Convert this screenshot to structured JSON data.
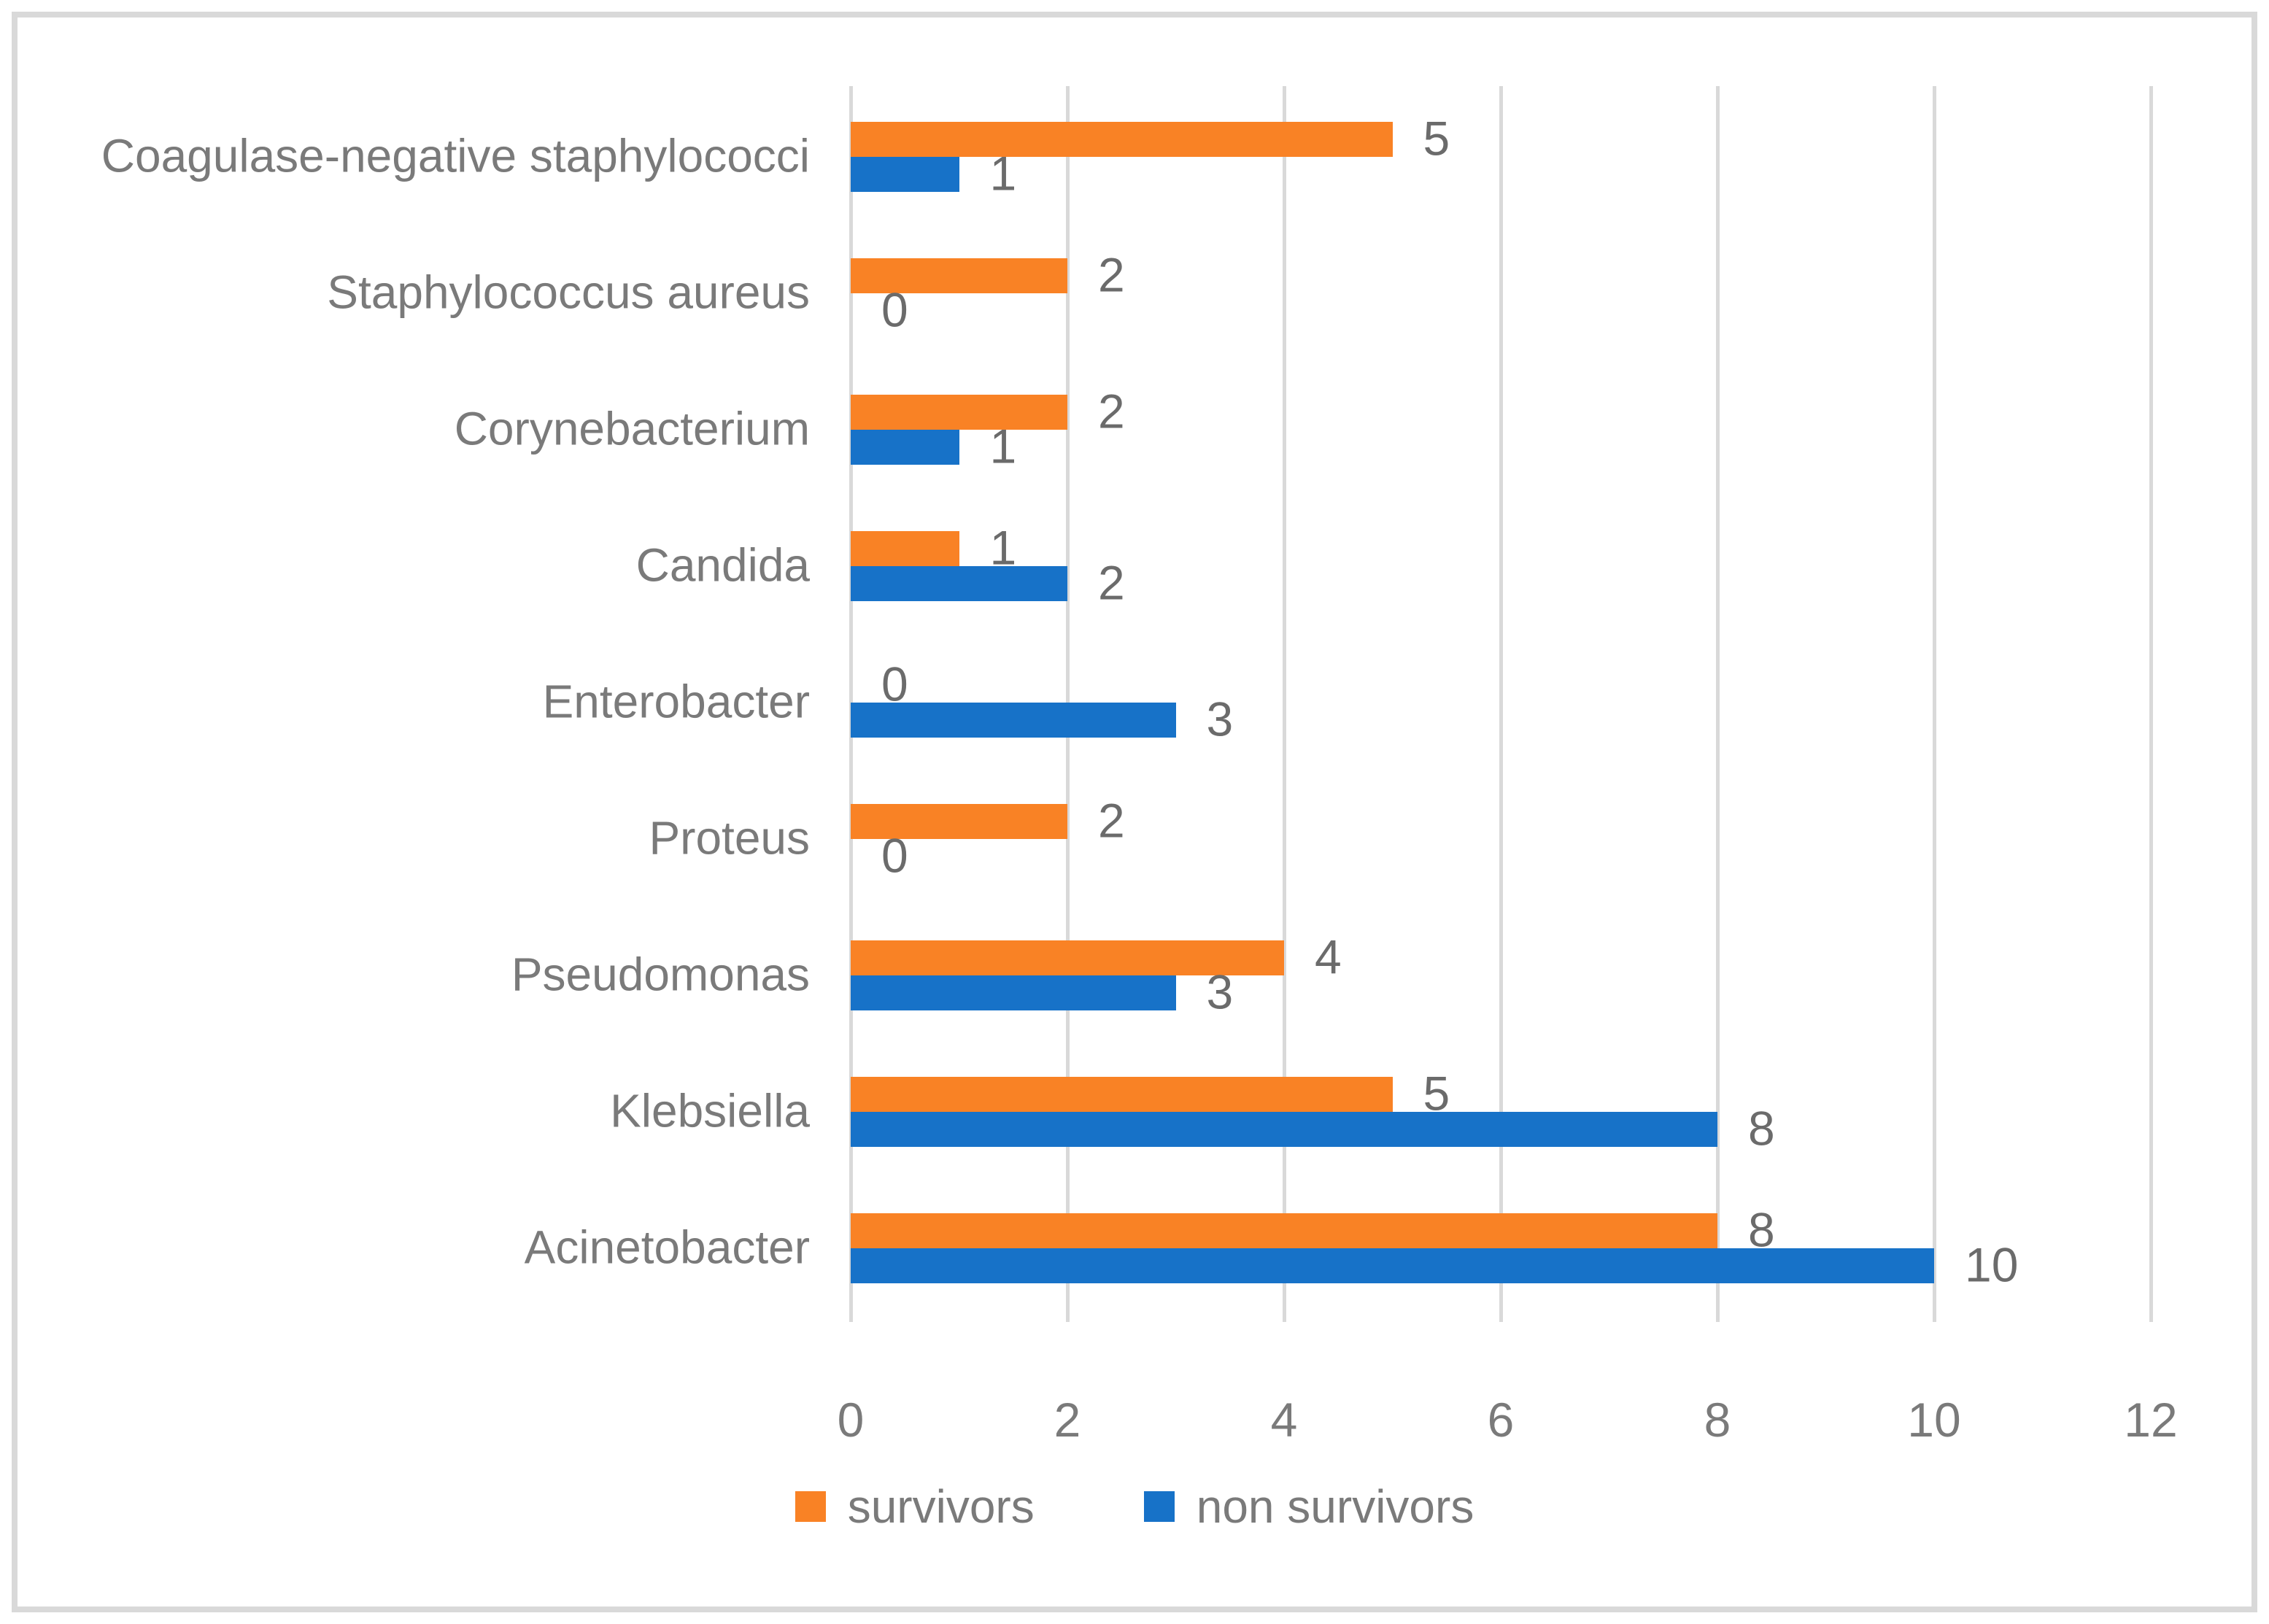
{
  "figure": {
    "background": "#FFFFFF",
    "border_color": "#D9D9D9"
  },
  "chart_data": {
    "type": "bar",
    "orientation": "horizontal",
    "title": "",
    "xlabel": "",
    "ylabel": "",
    "categories": [
      "Coagulase-negative staphylococci",
      "Staphylococcus aureus",
      "Corynebacterium",
      "Candida",
      "Enterobacter",
      "Proteus",
      "Pseudomonas",
      "Klebsiella",
      "Acinetobacter"
    ],
    "series": [
      {
        "name": "survivors",
        "color": "#F98225",
        "values": [
          5,
          2,
          2,
          1,
          0,
          2,
          4,
          5,
          8
        ]
      },
      {
        "name": "non survivors",
        "color": "#1772C8",
        "values": [
          1,
          0,
          1,
          2,
          3,
          0,
          3,
          8,
          10
        ]
      }
    ],
    "x_ticks": [
      0,
      2,
      4,
      6,
      8,
      10,
      12
    ],
    "xlim": [
      0,
      12
    ],
    "grid": true,
    "gridline_color": "#D9D9D9",
    "data_labels": true,
    "value_label_color": "#6B6B6B",
    "axis_text_color": "#7A7A7A",
    "legend_position": "bottom"
  },
  "legend": {
    "items": [
      {
        "label": "survivors",
        "color": "#F98225"
      },
      {
        "label": "non survivors",
        "color": "#1772C8"
      }
    ]
  }
}
